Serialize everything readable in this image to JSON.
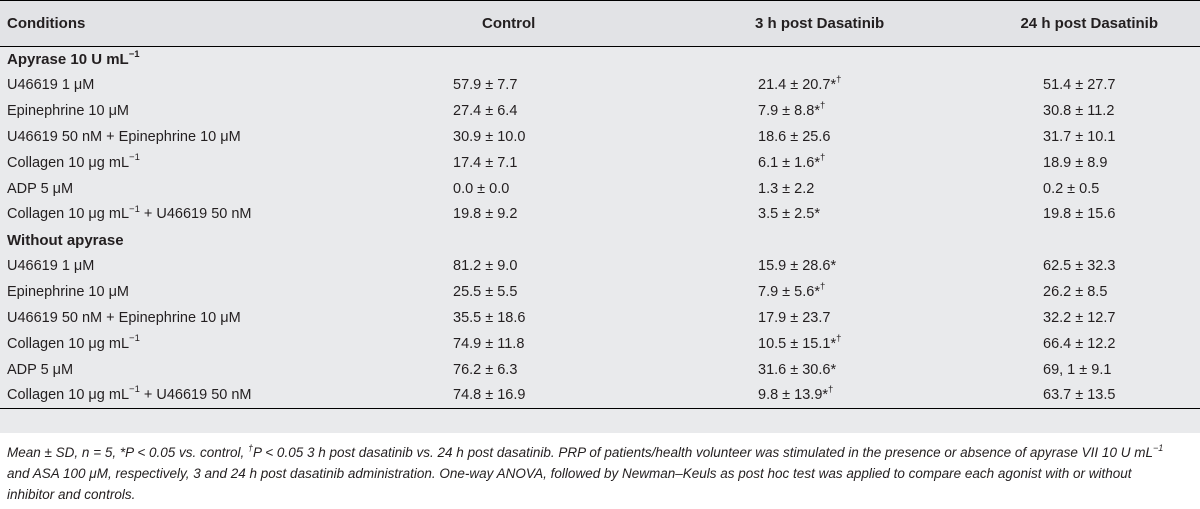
{
  "table": {
    "headers": [
      "Conditions",
      "Control",
      "3 h post Dasatinib",
      "24 h post Dasatinib"
    ],
    "sections": [
      {
        "title": "Apyrase 10 U mL",
        "title_sup": "−1",
        "rows": [
          {
            "condition": "U46619 1 μM",
            "control": "57.9 ± 7.7",
            "post3": "21.4 ± 20.7*",
            "post3_sup": "†",
            "post24": "51.4 ± 27.7"
          },
          {
            "condition": "Epinephrine 10 μM",
            "control": "27.4 ± 6.4",
            "post3": "7.9 ± 8.8*",
            "post3_sup": "†",
            "post24": "30.8 ± 11.2"
          },
          {
            "condition": "U46619 50 nM + Epinephrine 10 μM",
            "control": "30.9 ± 10.0",
            "post3": "18.6 ± 25.6",
            "post3_sup": "",
            "post24": "31.7 ± 10.1"
          },
          {
            "condition": "Collagen 10 μg mL",
            "condition_sup": "−1",
            "control": "17.4 ± 7.1",
            "post3": "6.1 ± 1.6*",
            "post3_sup": "†",
            "post24": "18.9 ± 8.9"
          },
          {
            "condition": "ADP 5 μM",
            "control": "0.0 ± 0.0",
            "post3": "1.3 ± 2.2",
            "post3_sup": "",
            "post24": "0.2 ± 0.5"
          },
          {
            "condition": "Collagen 10 μg mL",
            "condition_sup": "−1",
            "condition_tail": " + U46619 50 nM",
            "control": "19.8 ± 9.2",
            "post3": "3.5 ± 2.5*",
            "post3_sup": "",
            "post24": "19.8 ± 15.6"
          }
        ]
      },
      {
        "title": "Without apyrase",
        "title_sup": "",
        "rows": [
          {
            "condition": "U46619 1 μM",
            "control": "81.2 ± 9.0",
            "post3": "15.9 ± 28.6*",
            "post3_sup": "",
            "post24": "62.5 ± 32.3"
          },
          {
            "condition": "Epinephrine 10 μM",
            "control": "25.5 ± 5.5",
            "post3": "7.9 ± 5.6*",
            "post3_sup": "†",
            "post24": "26.2 ± 8.5"
          },
          {
            "condition": "U46619 50 nM + Epinephrine 10 μM",
            "control": "35.5 ± 18.6",
            "post3": "17.9 ± 23.7",
            "post3_sup": "",
            "post24": "32.2 ± 12.7"
          },
          {
            "condition": "Collagen 10 μg mL",
            "condition_sup": "−1",
            "control": "74.9 ± 11.8",
            "post3": "10.5 ± 15.1*",
            "post3_sup": "†",
            "post24": "66.4 ± 12.2"
          },
          {
            "condition": "ADP 5 μM",
            "control": "76.2 ± 6.3",
            "post3": "31.6 ± 30.6*",
            "post3_sup": "",
            "post24": "69, 1 ± 9.1"
          },
          {
            "condition": "Collagen 10 μg mL",
            "condition_sup": "−1",
            "condition_tail": " + U46619 50 nM",
            "control": "74.8 ± 16.9",
            "post3": "9.8 ± 13.9*",
            "post3_sup": "†",
            "post24": "63.7 ± 13.5"
          }
        ]
      }
    ]
  },
  "footnote": {
    "part1": "Mean ± SD, n = 5, *P < 0.05 vs. control, ",
    "dagger": "†",
    "part2": "P < 0.05 3 h post dasatinib vs. 24 h post dasatinib. PRP of patients/health volunteer was stimulated in the presence or absence of apyrase VII 10 U mL",
    "sup": "−1",
    "part3": " and ASA 100 μM, respectively, 3 and 24 h post dasatinib administration. One-way ANOVA, followed by Newman–Keuls as post hoc test was applied to compare each agonist with or without inhibitor and controls."
  }
}
